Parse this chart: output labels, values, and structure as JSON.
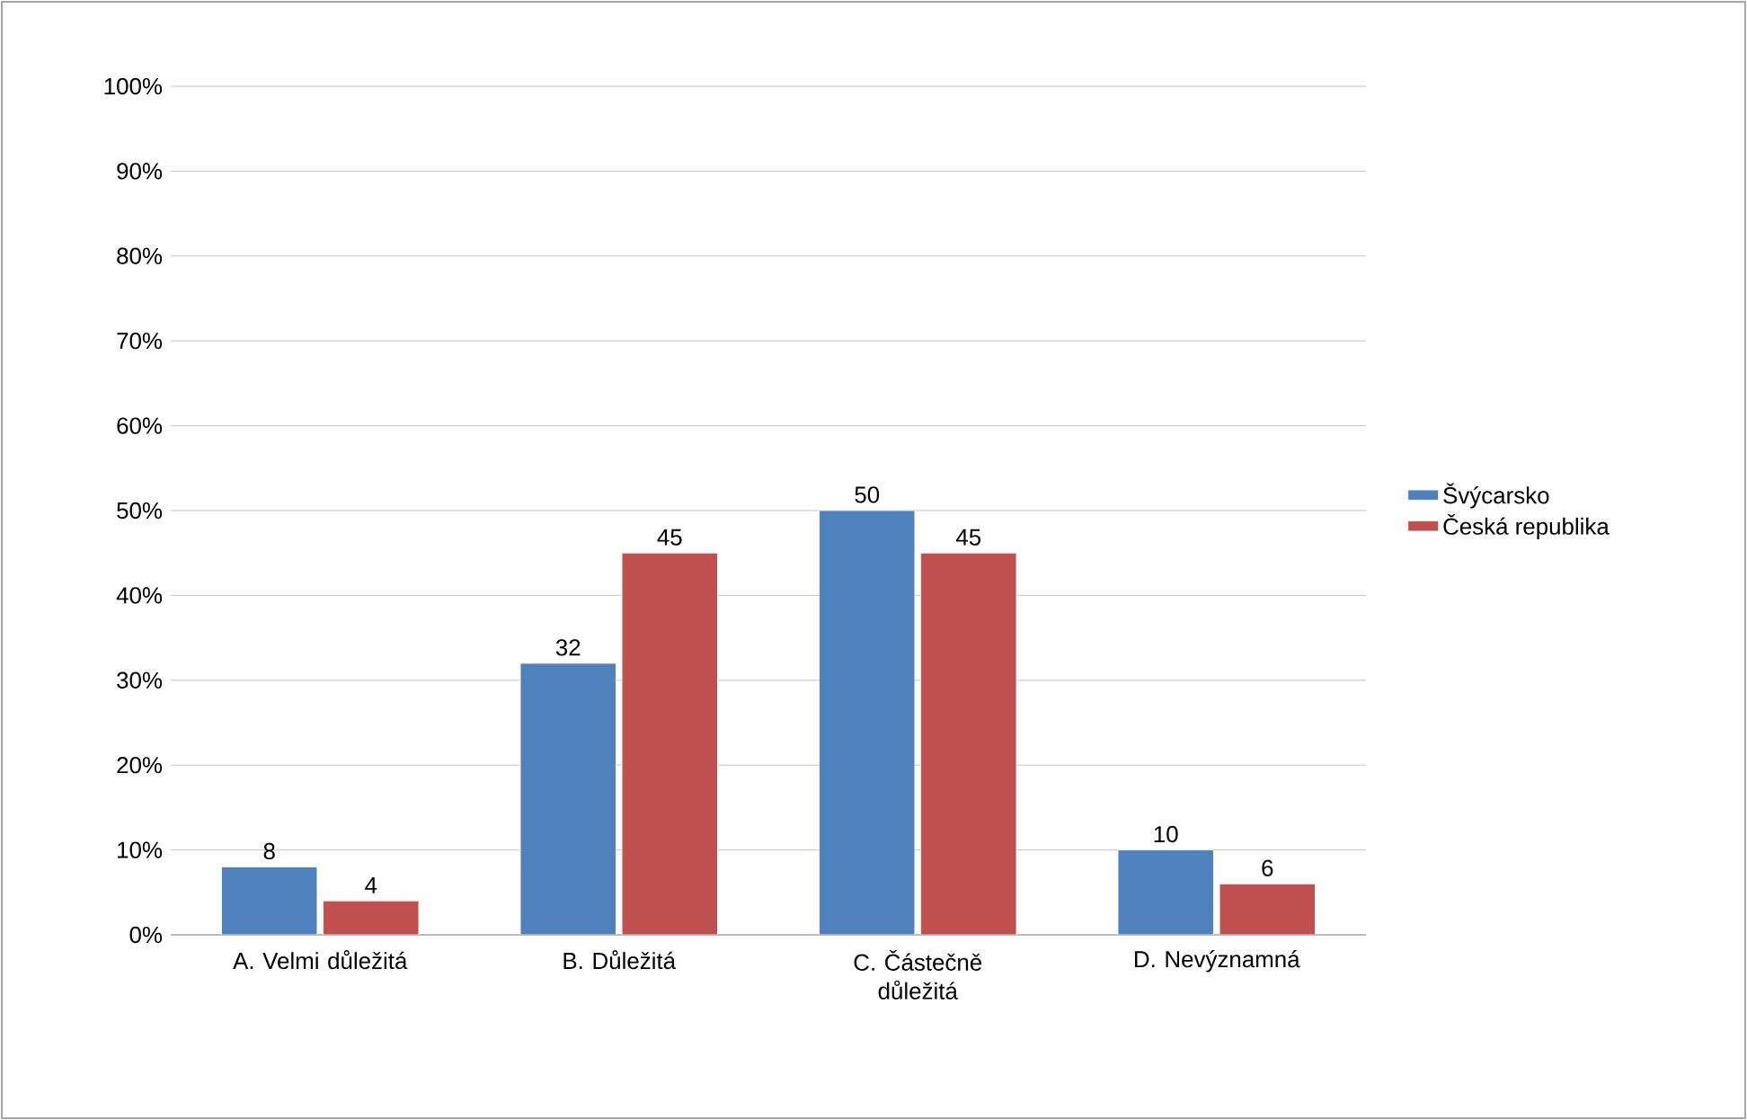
{
  "chart_data": {
    "type": "bar",
    "categories": [
      "A. Velmi důležitá",
      "B. Důležitá",
      "C. Částečně důležitá",
      "D. Nevýznamná"
    ],
    "series": [
      {
        "name": "Švýcarsko",
        "color": "#4f81bd",
        "values": [
          8,
          32,
          50,
          10
        ]
      },
      {
        "name": "Česká republika",
        "color": "#c0504d",
        "values": [
          4,
          45,
          45,
          6
        ]
      }
    ],
    "ylim": [
      0,
      100
    ],
    "yticks": [
      {
        "value": 0,
        "label": "0%"
      },
      {
        "value": 10,
        "label": "10%"
      },
      {
        "value": 20,
        "label": "20%"
      },
      {
        "value": 30,
        "label": "30%"
      },
      {
        "value": 40,
        "label": "40%"
      },
      {
        "value": 50,
        "label": "50%"
      },
      {
        "value": 60,
        "label": "60%"
      },
      {
        "value": 70,
        "label": "70%"
      },
      {
        "value": 80,
        "label": "80%"
      },
      {
        "value": 90,
        "label": "90%"
      },
      {
        "value": 100,
        "label": "100%"
      }
    ],
    "grid": "y",
    "legend": "right",
    "data_labels": true
  }
}
